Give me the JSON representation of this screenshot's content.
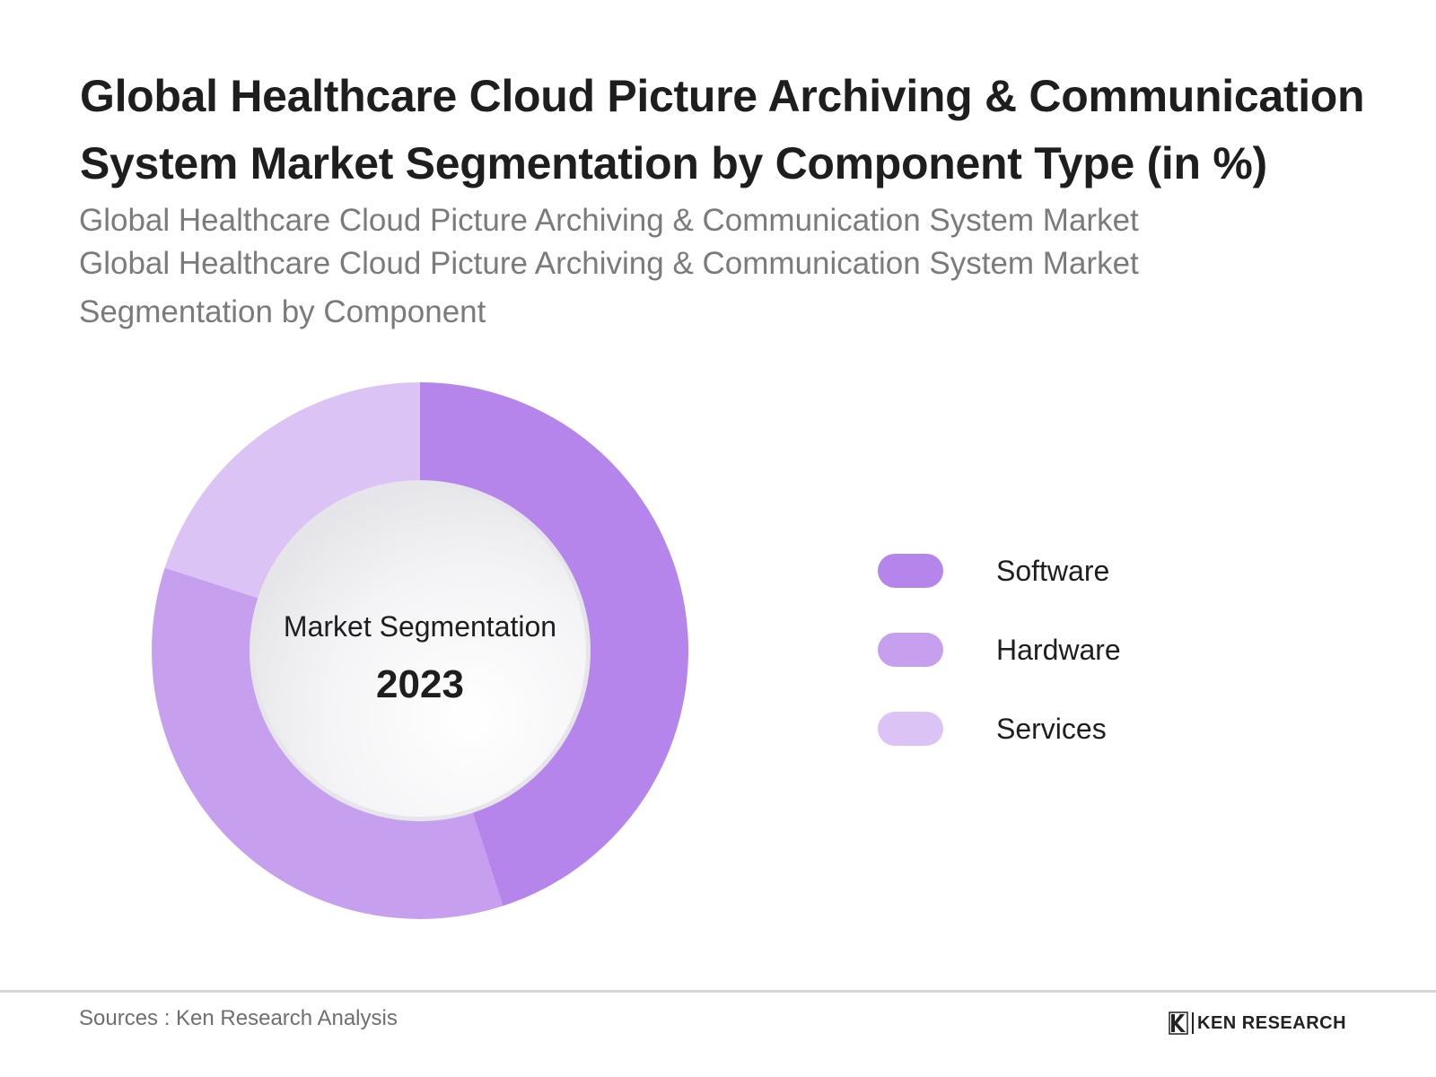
{
  "header": {
    "title": "Global Healthcare Cloud Picture Archiving & Communication System Market Segmentation by Component Type (in %)",
    "subtitle_line1": "Global Healthcare Cloud Picture Archiving & Communication System Market",
    "subtitle_line2": "Global Healthcare Cloud Picture Archiving & Communication System Market",
    "subtitle_line3": "Segmentation by Component"
  },
  "chart_data": {
    "type": "pie",
    "variant": "donut",
    "categories": [
      "Software",
      "Hardware",
      "Services"
    ],
    "values": [
      45,
      35,
      20
    ],
    "colors": [
      "#b585eb",
      "#c6a0ef",
      "#dcc3f6"
    ],
    "center_label": "Market Segmentation",
    "center_year": "2023",
    "legend_position": "right"
  },
  "footer": {
    "source": "Sources : Ken Research Analysis",
    "brand": "KEN RESEARCH"
  }
}
